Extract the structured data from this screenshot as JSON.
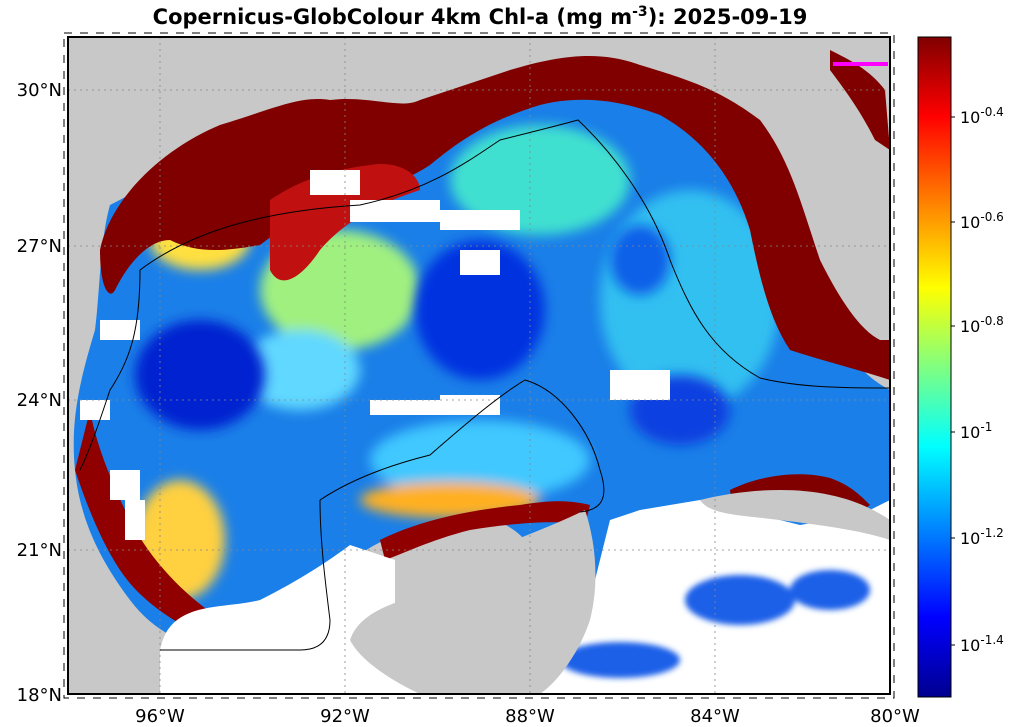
{
  "map": {
    "title_prefix": "Copernicus-GlobColour 4km Chl-a (mg m",
    "title_exponent": "-3",
    "title_suffix": "): 2025-09-19",
    "lat_labels": [
      "30°N",
      "27°N",
      "24°N",
      "21°N",
      "18°N"
    ],
    "lon_labels": [
      "96°W",
      "92°W",
      "88°W",
      "84°W",
      "80°W"
    ],
    "colors": {
      "land": "#c8c8c8",
      "nodata": "#ffffff",
      "high_chl": "#800000",
      "coast": "#000000",
      "marker": "#ff00ff"
    }
  },
  "colorbar": {
    "base": "10",
    "exponents": [
      "-0.4",
      "-0.6",
      "-0.8",
      "-1",
      "-1.2",
      "-1.4"
    ],
    "palette": [
      "#00008f",
      "#0000ff",
      "#0080ff",
      "#00ffff",
      "#80ff80",
      "#ffff00",
      "#ff8000",
      "#ff0000",
      "#800000"
    ]
  }
}
